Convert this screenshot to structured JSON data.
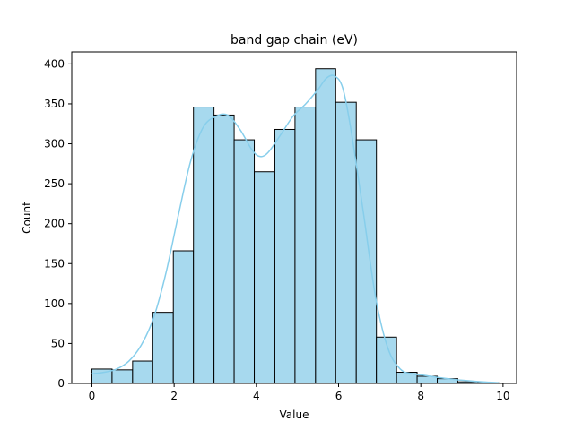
{
  "chart_data": {
    "type": "bar",
    "subtype": "histogram-with-kde",
    "title": "band gap chain (eV)",
    "xlabel": "Value",
    "ylabel": "Count",
    "xlim": [
      -0.49,
      10.33
    ],
    "ylim": [
      0,
      415
    ],
    "xticks": [
      0,
      2,
      4,
      6,
      8,
      10
    ],
    "yticks": [
      0,
      50,
      100,
      150,
      200,
      250,
      300,
      350,
      400
    ],
    "grid": false,
    "legend": "none",
    "bin_edges": [
      0.0,
      0.49,
      0.99,
      1.48,
      1.98,
      2.47,
      2.97,
      3.46,
      3.95,
      4.45,
      4.94,
      5.44,
      5.93,
      6.43,
      6.92,
      7.41,
      7.91,
      8.4,
      8.9,
      9.39,
      9.89
    ],
    "values": [
      18,
      17,
      28,
      89,
      166,
      346,
      336,
      305,
      265,
      318,
      346,
      394,
      352,
      305,
      58,
      14,
      9,
      6,
      2,
      1
    ],
    "kde": {
      "x": [
        0.0,
        0.3,
        0.6,
        0.9,
        1.2,
        1.5,
        1.8,
        2.1,
        2.4,
        2.7,
        3.0,
        3.3,
        3.6,
        3.9,
        4.1,
        4.3,
        4.6,
        4.9,
        5.2,
        5.5,
        5.7,
        5.9,
        6.1,
        6.3,
        6.6,
        6.9,
        7.2,
        7.5,
        7.8,
        8.1,
        8.5,
        9.0,
        9.5,
        9.89
      ],
      "y": [
        12,
        14,
        18,
        28,
        48,
        82,
        138,
        210,
        278,
        320,
        334,
        336,
        318,
        292,
        284,
        290,
        312,
        335,
        350,
        368,
        382,
        385,
        370,
        318,
        215,
        108,
        44,
        18,
        12,
        10,
        7,
        4,
        2,
        1
      ]
    },
    "colors": {
      "bar_fill": "#a7d9ee",
      "bar_edge": "#000000",
      "kde_line": "#87ceeb",
      "axes": "#000000"
    }
  }
}
